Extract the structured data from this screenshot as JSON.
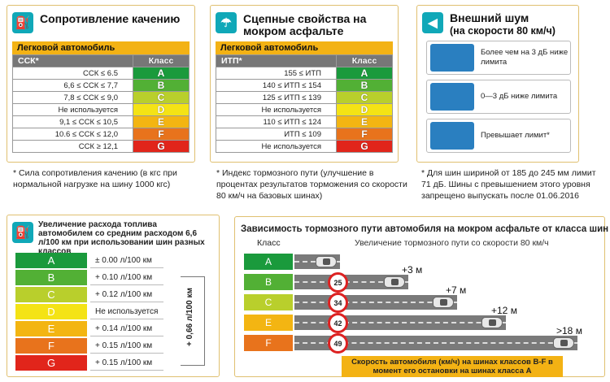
{
  "rolling": {
    "title": "Сопротивление качению",
    "group": "Легковой автомобиль",
    "col1": "ССК*",
    "col2": "Класс",
    "rows": [
      {
        "range": "ССК ≤ 6.5",
        "cls": "A",
        "color": "#1a9a3c"
      },
      {
        "range": "6,6 ≤ ССК ≤ 7,7",
        "cls": "B",
        "color": "#52b035"
      },
      {
        "range": "7,8 ≤ ССК ≤ 9,0",
        "cls": "C",
        "color": "#b9cf2c"
      },
      {
        "range": "Не используется",
        "cls": "D",
        "color": "#f4e315"
      },
      {
        "range": "9,1 ≤ ССК ≤ 10,5",
        "cls": "E",
        "color": "#f3b512"
      },
      {
        "range": "10.6 ≤ ССК ≤ 12,0",
        "cls": "F",
        "color": "#e8731c"
      },
      {
        "range": "ССК ≥ 12,1",
        "cls": "G",
        "color": "#e1251b"
      }
    ],
    "note": "* Сила сопротивления качению (в кгс при нормальной нагрузке на шину 1000 кгс)"
  },
  "wet": {
    "title": "Сцепные свойства на мокром асфальте",
    "group": "Легковой автомобиль",
    "col1": "ИТП*",
    "col2": "Класс",
    "rows": [
      {
        "range": "155 ≤ ИТП",
        "cls": "A",
        "color": "#1a9a3c"
      },
      {
        "range": "140 ≤ ИТП ≤ 154",
        "cls": "B",
        "color": "#52b035"
      },
      {
        "range": "125 ≤ ИТП ≤ 139",
        "cls": "C",
        "color": "#b9cf2c"
      },
      {
        "range": "Не используется",
        "cls": "D",
        "color": "#f4e315"
      },
      {
        "range": "110 ≤ ИТП ≤ 124",
        "cls": "E",
        "color": "#f3b512"
      },
      {
        "range": "ИТП ≤ 109",
        "cls": "F",
        "color": "#e8731c"
      },
      {
        "range": "Не используется",
        "cls": "G",
        "color": "#e1251b"
      }
    ],
    "note": "* Индекс тормозного пути (улучшение в процентах результатов торможения со скорости 80 км/ч на базовых шинах)"
  },
  "noise": {
    "title": "Внешний шум",
    "subtitle": "(на скорости 80 км/ч)",
    "items": [
      "Более чем на 3 дБ ниже лимита",
      "0—3 дБ ниже лимита",
      "Превышает лимит*"
    ],
    "note": "* Для шин шириной от 185 до 245 мм лимит 71 дБ. Шины с превышением этого уровня запрещено выпускать после 01.06.2016"
  },
  "fuel": {
    "title": "Увеличение расхода топлива автомобилем со средним расходом 6,6 л/100 км при использовании шин разных классов",
    "total": "+ 0,66 л/100 км",
    "rows": [
      {
        "cls": "A",
        "val": "± 0.00 л/100 км",
        "color": "#1a9a3c"
      },
      {
        "cls": "B",
        "val": "+ 0.10 л/100 км",
        "color": "#52b035"
      },
      {
        "cls": "C",
        "val": "+ 0.12 л/100 км",
        "color": "#b9cf2c"
      },
      {
        "cls": "D",
        "val": "Не используется",
        "color": "#f4e315"
      },
      {
        "cls": "E",
        "val": "+ 0.14 л/100 км",
        "color": "#f3b512"
      },
      {
        "cls": "F",
        "val": "+ 0.15 л/100 км",
        "color": "#e8731c"
      },
      {
        "cls": "G",
        "val": "+ 0.15 л/100 км",
        "color": "#e1251b"
      }
    ]
  },
  "braking": {
    "title": "Зависимость тормозного пути автомобиля на мокром асфальте от класса шин",
    "col1": "Класс",
    "col2": "Увеличение тормозного пути со скорости 80 км/ч",
    "rows": [
      {
        "cls": "A",
        "speed": "",
        "delta": "",
        "color": "#1a9a3c"
      },
      {
        "cls": "B",
        "speed": "25",
        "delta": "+3 м",
        "color": "#52b035"
      },
      {
        "cls": "C",
        "speed": "34",
        "delta": "+7 м",
        "color": "#b9cf2c"
      },
      {
        "cls": "E",
        "speed": "42",
        "delta": "+12 м",
        "color": "#f3b512"
      },
      {
        "cls": "F",
        "speed": "49",
        "delta": ">18 м",
        "color": "#e8731c"
      }
    ],
    "caption": "Скорость автомобиля (км/ч) на шинах классов B-F в момент его остановки на шинах класса A"
  }
}
